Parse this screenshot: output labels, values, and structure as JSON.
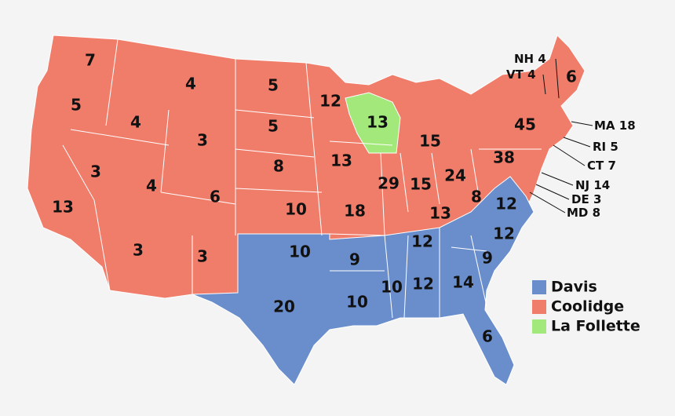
{
  "parties": [
    {
      "name": "Davis",
      "color": "#6a8dcc",
      "states": [
        10,
        20,
        9,
        10,
        10,
        12,
        12,
        14,
        6,
        9,
        12,
        12
      ]
    },
    {
      "name": "Coolidge",
      "color": "#f07c6a",
      "states": [
        7,
        5,
        13,
        4,
        3,
        4,
        3,
        4,
        6,
        3,
        3,
        5,
        5,
        8,
        10,
        12,
        13,
        18,
        29,
        15,
        15,
        24,
        13,
        8,
        38,
        45,
        6
      ],
      "callouts": [
        {
          "label": "NH",
          "votes": 4
        },
        {
          "label": "VT",
          "votes": 4
        },
        {
          "label": "MA",
          "votes": 18
        },
        {
          "label": "RI",
          "votes": 5
        },
        {
          "label": "CT",
          "votes": 7
        },
        {
          "label": "NJ",
          "votes": 14
        },
        {
          "label": "DE",
          "votes": 3
        },
        {
          "label": "MD",
          "votes": 8
        }
      ]
    },
    {
      "name": "La Follette",
      "color": "#a3e87a",
      "states": [
        13
      ]
    }
  ]
}
